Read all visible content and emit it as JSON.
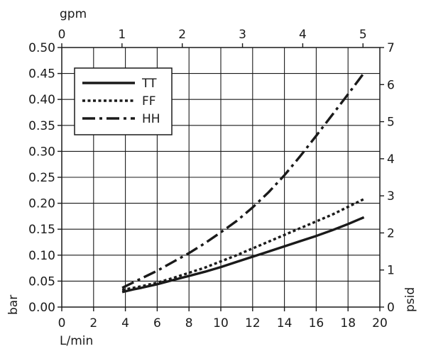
{
  "chart_data": {
    "type": "line",
    "xlabel_bottom": "L/min",
    "xlabel_top": "gpm",
    "ylabel_left": "bar",
    "ylabel_right": "psid",
    "xlim": [
      0,
      20
    ],
    "ylim": [
      0,
      0.5
    ],
    "x2lim": [
      0,
      5.28
    ],
    "y2lim": [
      0,
      7
    ],
    "grid": true,
    "legend_position": "top-left",
    "x_ticks": [
      "0",
      "2",
      "4",
      "6",
      "8",
      "10",
      "12",
      "14",
      "16",
      "18",
      "20"
    ],
    "x_tick_values": [
      0,
      2,
      4,
      6,
      8,
      10,
      12,
      14,
      16,
      18,
      20
    ],
    "y_ticks": [
      "0.00",
      "0.05",
      "0.10",
      "0.15",
      "0.20",
      "0.25",
      "0.30",
      "0.35",
      "0.40",
      "0.45",
      "0.50"
    ],
    "y_tick_values": [
      0,
      0.05,
      0.1,
      0.15,
      0.2,
      0.25,
      0.3,
      0.35,
      0.4,
      0.45,
      0.5
    ],
    "x2_ticks": [
      "0",
      "1",
      "2",
      "3",
      "4",
      "5"
    ],
    "x2_tick_values": [
      0,
      1,
      2,
      3,
      4,
      5
    ],
    "y2_ticks": [
      "0",
      "1",
      "2",
      "3",
      "4",
      "5",
      "6",
      "7"
    ],
    "y2_tick_values": [
      0,
      1,
      2,
      3,
      4,
      5,
      6,
      7
    ],
    "series": [
      {
        "name": "TT",
        "style": "solid",
        "x": [
          3.8,
          4.5,
          5,
          6,
          7,
          8,
          9,
          10,
          11,
          12,
          13,
          14,
          15,
          16,
          17,
          18,
          19
        ],
        "y": [
          0.029,
          0.034,
          0.037,
          0.044,
          0.052,
          0.06,
          0.068,
          0.077,
          0.087,
          0.097,
          0.107,
          0.117,
          0.127,
          0.137,
          0.148,
          0.16,
          0.173
        ]
      },
      {
        "name": "FF",
        "style": "dotted",
        "x": [
          3.8,
          4.5,
          5,
          6,
          7,
          8,
          9,
          10,
          11,
          12,
          13,
          14,
          15,
          16,
          17,
          18,
          19
        ],
        "y": [
          0.033,
          0.037,
          0.04,
          0.047,
          0.056,
          0.066,
          0.076,
          0.088,
          0.1,
          0.113,
          0.126,
          0.139,
          0.152,
          0.165,
          0.178,
          0.193,
          0.208
        ]
      },
      {
        "name": "HH",
        "style": "dash-dot",
        "x": [
          3.8,
          5,
          6,
          7,
          8,
          9,
          10,
          11,
          12,
          13,
          14,
          15,
          16,
          17,
          18,
          19
        ],
        "y": [
          0.037,
          0.055,
          0.07,
          0.087,
          0.104,
          0.123,
          0.144,
          0.166,
          0.192,
          0.221,
          0.254,
          0.291,
          0.33,
          0.37,
          0.41,
          0.451
        ]
      }
    ]
  }
}
